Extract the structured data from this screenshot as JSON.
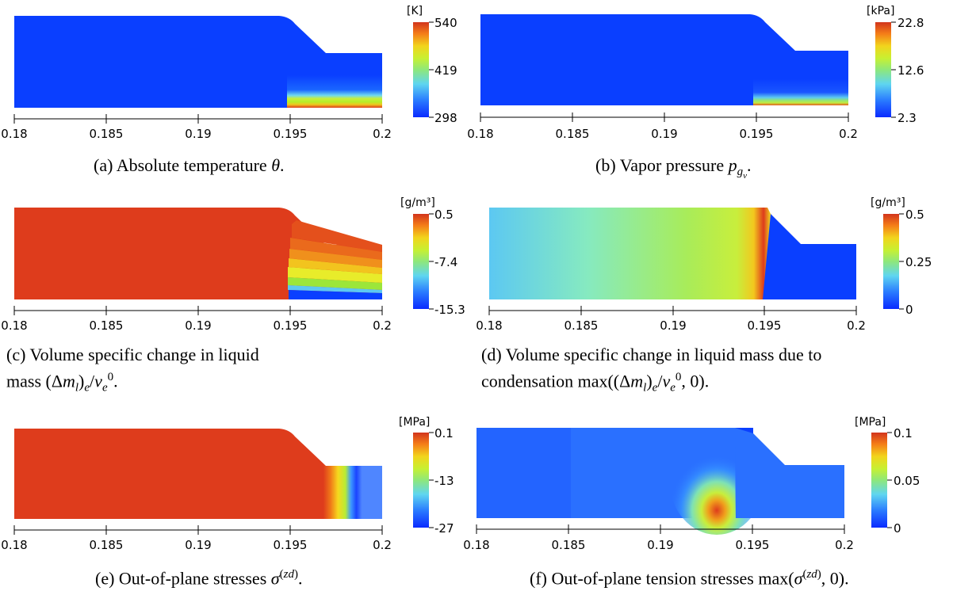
{
  "colors": {
    "blue": "#0a3fff",
    "red": "#de3c1c",
    "cool_stop_1": "#1060ff",
    "cool_stop_2": "#4ec6f4",
    "mid": "#9be47c",
    "mid2": "#c8f03a",
    "warm": "#f0d81e",
    "warm2": "#f47a16"
  },
  "panels": [
    {
      "id": "a",
      "unit": "[K]",
      "cbar_ticks": [
        "540",
        "419",
        "298"
      ],
      "x_ticks": [
        "0.18",
        "0.185",
        "0.19",
        "0.195",
        "0.2"
      ],
      "caption_tag": "(a)",
      "caption": "Absolute temperature θ."
    },
    {
      "id": "b",
      "unit": "[kPa]",
      "cbar_ticks": [
        "22.8",
        "12.6",
        "2.3"
      ],
      "x_ticks": [
        "0.18",
        "0.185",
        "0.19",
        "0.195",
        "0.2"
      ],
      "caption_tag": "(b)",
      "caption": "Vapor pressure p_{g_v}."
    },
    {
      "id": "c",
      "unit": "[g/m³]",
      "cbar_ticks": [
        "0.5",
        "-7.4",
        "-15.3"
      ],
      "x_ticks": [
        "0.18",
        "0.185",
        "0.19",
        "0.195",
        "0.2"
      ],
      "caption_tag": "(c)",
      "caption_lines": [
        "Volume specific change in liquid",
        "mass (Δm_l)_e/v_e^0."
      ]
    },
    {
      "id": "d",
      "unit": "[g/m³]",
      "cbar_ticks": [
        "0.5",
        "0.25",
        "0"
      ],
      "x_ticks": [
        "0.18",
        "0.185",
        "0.19",
        "0.195",
        "0.2"
      ],
      "caption_tag": "(d)",
      "caption_lines": [
        "Volume specific change in liquid mass due to",
        "condensation max((Δm_l)_e/v_e^0, 0)."
      ]
    },
    {
      "id": "e",
      "unit": "[MPa]",
      "cbar_ticks": [
        "0.1",
        "-13",
        "-27"
      ],
      "x_ticks": [
        "0.18",
        "0.185",
        "0.19",
        "0.195",
        "0.2"
      ],
      "caption_tag": "(e)",
      "caption": "Out-of-plane stresses σ^(zd)."
    },
    {
      "id": "f",
      "unit": "[MPa]",
      "cbar_ticks": [
        "0.1",
        "0.05",
        "0"
      ],
      "x_ticks": [
        "0.18",
        "0.185",
        "0.19",
        "0.195",
        "0.2"
      ],
      "caption_tag": "(f)",
      "caption": "Out-of-plane tension stresses max(σ^(zd), 0)."
    }
  ]
}
